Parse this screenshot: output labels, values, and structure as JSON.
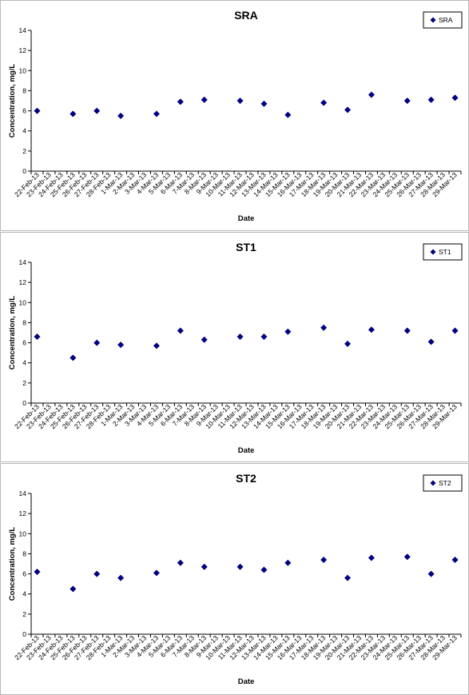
{
  "chart_data": [
    {
      "type": "scatter",
      "title": "SRA",
      "xlabel": "Date",
      "ylabel": "Concentration, mg/L",
      "ylim": [
        0,
        14
      ],
      "yticks": [
        0,
        2,
        4,
        6,
        8,
        10,
        12,
        14
      ],
      "legend": "top-right",
      "grid": false,
      "color": "#000080",
      "categories": [
        "22-Feb-13",
        "23-Feb-13",
        "24-Feb-13",
        "25-Feb-13",
        "26-Feb-13",
        "27-Feb-13",
        "28-Feb-13",
        "1-Mar-13",
        "2-Mar-13",
        "3-Mar-13",
        "4-Mar-13",
        "5-Mar-13",
        "6-Mar-13",
        "7-Mar-13",
        "8-Mar-13",
        "9-Mar-13",
        "10-Mar-13",
        "11-Mar-13",
        "12-Mar-13",
        "13-Mar-13",
        "14-Mar-13",
        "15-Mar-13",
        "16-Mar-13",
        "17-Mar-13",
        "18-Mar-13",
        "19-Mar-13",
        "20-Mar-13",
        "21-Mar-13",
        "22-Mar-13",
        "23-Mar-13",
        "24-Mar-13",
        "25-Mar-13",
        "26-Mar-13",
        "27-Mar-13",
        "28-Mar-13",
        "29-Mar-13"
      ],
      "series": [
        {
          "name": "SRA",
          "points": [
            {
              "x": "22-Feb-13",
              "y": 6.0
            },
            {
              "x": "25-Feb-13",
              "y": 5.7
            },
            {
              "x": "27-Feb-13",
              "y": 6.0
            },
            {
              "x": "1-Mar-13",
              "y": 5.5
            },
            {
              "x": "4-Mar-13",
              "y": 5.7
            },
            {
              "x": "6-Mar-13",
              "y": 6.9
            },
            {
              "x": "8-Mar-13",
              "y": 7.1
            },
            {
              "x": "11-Mar-13",
              "y": 7.0
            },
            {
              "x": "13-Mar-13",
              "y": 6.7
            },
            {
              "x": "15-Mar-13",
              "y": 5.6
            },
            {
              "x": "18-Mar-13",
              "y": 6.8
            },
            {
              "x": "20-Mar-13",
              "y": 6.1
            },
            {
              "x": "22-Mar-13",
              "y": 7.6
            },
            {
              "x": "25-Mar-13",
              "y": 7.0
            },
            {
              "x": "27-Mar-13",
              "y": 7.1
            },
            {
              "x": "29-Mar-13",
              "y": 7.3
            }
          ]
        }
      ]
    },
    {
      "type": "scatter",
      "title": "ST1",
      "xlabel": "Date",
      "ylabel": "Concentration, mg/L",
      "ylim": [
        0,
        14
      ],
      "yticks": [
        0,
        2,
        4,
        6,
        8,
        10,
        12,
        14
      ],
      "legend": "top-right",
      "grid": false,
      "color": "#000080",
      "categories": [
        "22-Feb-13",
        "23-Feb-13",
        "24-Feb-13",
        "25-Feb-13",
        "26-Feb-13",
        "27-Feb-13",
        "28-Feb-13",
        "1-Mar-13",
        "2-Mar-13",
        "3-Mar-13",
        "4-Mar-13",
        "5-Mar-13",
        "6-Mar-13",
        "7-Mar-13",
        "8-Mar-13",
        "9-Mar-13",
        "10-Mar-13",
        "11-Mar-13",
        "12-Mar-13",
        "13-Mar-13",
        "14-Mar-13",
        "15-Mar-13",
        "16-Mar-13",
        "17-Mar-13",
        "18-Mar-13",
        "19-Mar-13",
        "20-Mar-13",
        "21-Mar-13",
        "22-Mar-13",
        "23-Mar-13",
        "24-Mar-13",
        "25-Mar-13",
        "26-Mar-13",
        "27-Mar-13",
        "28-Mar-13",
        "29-Mar-13"
      ],
      "series": [
        {
          "name": "ST1",
          "points": [
            {
              "x": "22-Feb-13",
              "y": 6.6
            },
            {
              "x": "25-Feb-13",
              "y": 4.5
            },
            {
              "x": "27-Feb-13",
              "y": 6.0
            },
            {
              "x": "1-Mar-13",
              "y": 5.8
            },
            {
              "x": "4-Mar-13",
              "y": 5.7
            },
            {
              "x": "6-Mar-13",
              "y": 7.2
            },
            {
              "x": "8-Mar-13",
              "y": 6.3
            },
            {
              "x": "11-Mar-13",
              "y": 6.6
            },
            {
              "x": "13-Mar-13",
              "y": 6.6
            },
            {
              "x": "15-Mar-13",
              "y": 7.1
            },
            {
              "x": "18-Mar-13",
              "y": 7.5
            },
            {
              "x": "20-Mar-13",
              "y": 5.9
            },
            {
              "x": "22-Mar-13",
              "y": 7.3
            },
            {
              "x": "25-Mar-13",
              "y": 7.2
            },
            {
              "x": "27-Mar-13",
              "y": 6.1
            },
            {
              "x": "29-Mar-13",
              "y": 7.2
            }
          ]
        }
      ]
    },
    {
      "type": "scatter",
      "title": "ST2",
      "xlabel": "Date",
      "ylabel": "Concentration, mg/L",
      "ylim": [
        0,
        14
      ],
      "yticks": [
        0,
        2,
        4,
        6,
        8,
        10,
        12,
        14
      ],
      "legend": "top-right",
      "grid": false,
      "color": "#000080",
      "categories": [
        "22-Feb-13",
        "23-Feb-13",
        "24-Feb-13",
        "25-Feb-13",
        "26-Feb-13",
        "27-Feb-13",
        "28-Feb-13",
        "1-Mar-13",
        "2-Mar-13",
        "3-Mar-13",
        "4-Mar-13",
        "5-Mar-13",
        "6-Mar-13",
        "7-Mar-13",
        "8-Mar-13",
        "9-Mar-13",
        "10-Mar-13",
        "11-Mar-13",
        "12-Mar-13",
        "13-Mar-13",
        "14-Mar-13",
        "15-Mar-13",
        "16-Mar-13",
        "17-Mar-13",
        "18-Mar-13",
        "19-Mar-13",
        "20-Mar-13",
        "21-Mar-13",
        "22-Mar-13",
        "23-Mar-13",
        "24-Mar-13",
        "25-Mar-13",
        "26-Mar-13",
        "27-Mar-13",
        "28-Mar-13",
        "29-Mar-13"
      ],
      "series": [
        {
          "name": "ST2",
          "points": [
            {
              "x": "22-Feb-13",
              "y": 6.2
            },
            {
              "x": "25-Feb-13",
              "y": 4.5
            },
            {
              "x": "27-Feb-13",
              "y": 6.0
            },
            {
              "x": "1-Mar-13",
              "y": 5.6
            },
            {
              "x": "4-Mar-13",
              "y": 6.1
            },
            {
              "x": "6-Mar-13",
              "y": 7.1
            },
            {
              "x": "8-Mar-13",
              "y": 6.7
            },
            {
              "x": "11-Mar-13",
              "y": 6.7
            },
            {
              "x": "13-Mar-13",
              "y": 6.4
            },
            {
              "x": "15-Mar-13",
              "y": 7.1
            },
            {
              "x": "18-Mar-13",
              "y": 7.4
            },
            {
              "x": "20-Mar-13",
              "y": 5.6
            },
            {
              "x": "22-Mar-13",
              "y": 7.6
            },
            {
              "x": "25-Mar-13",
              "y": 7.7
            },
            {
              "x": "27-Mar-13",
              "y": 6.0
            },
            {
              "x": "29-Mar-13",
              "y": 7.4
            }
          ]
        }
      ]
    }
  ]
}
